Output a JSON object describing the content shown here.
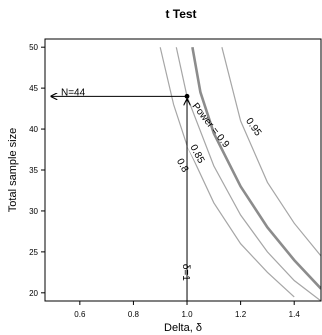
{
  "chart_data": {
    "type": "line",
    "title": "t Test",
    "xlabel": "Delta, δ",
    "ylabel": "Total sample size",
    "xlim": [
      0.47,
      1.5
    ],
    "ylim": [
      19,
      51
    ],
    "xticks": [
      "0.6",
      "0.8",
      "1.0",
      "1.2",
      "1.4"
    ],
    "yticks": [
      "20",
      "25",
      "30",
      "35",
      "40",
      "45",
      "50"
    ],
    "series": [
      {
        "name": "0.8",
        "emphasis": false,
        "label": "0.8",
        "x": [
          0.9,
          0.95,
          1.0,
          1.1,
          1.2,
          1.3,
          1.4
        ],
        "y": [
          50,
          43,
          38,
          31,
          26,
          22.5,
          19.5
        ]
      },
      {
        "name": "0.85",
        "emphasis": false,
        "label": "0.85",
        "x": [
          0.96,
          1.0,
          1.1,
          1.2,
          1.3,
          1.4,
          1.5
        ],
        "y": [
          50,
          44,
          35.5,
          29.5,
          25,
          21.5,
          19
        ]
      },
      {
        "name": "0.9",
        "emphasis": true,
        "label": "Power = 0.9",
        "x": [
          1.02,
          1.05,
          1.1,
          1.2,
          1.3,
          1.4,
          1.5
        ],
        "y": [
          50,
          44.5,
          39.5,
          33,
          28,
          24,
          20.5
        ]
      },
      {
        "name": "0.95",
        "emphasis": false,
        "label": "0.95",
        "x": [
          1.13,
          1.2,
          1.3,
          1.4,
          1.5
        ],
        "y": [
          50,
          41,
          33.5,
          28.5,
          24.5
        ]
      }
    ],
    "design_point": {
      "x": 1.0,
      "y": 44,
      "sample_label": "N=44",
      "delta_label": "δ=1"
    },
    "grid": false,
    "colors": {
      "contour": "#a6a6a6",
      "highlight": "#8c8c8c",
      "axis": "#000000",
      "arrow": "#000000"
    }
  }
}
